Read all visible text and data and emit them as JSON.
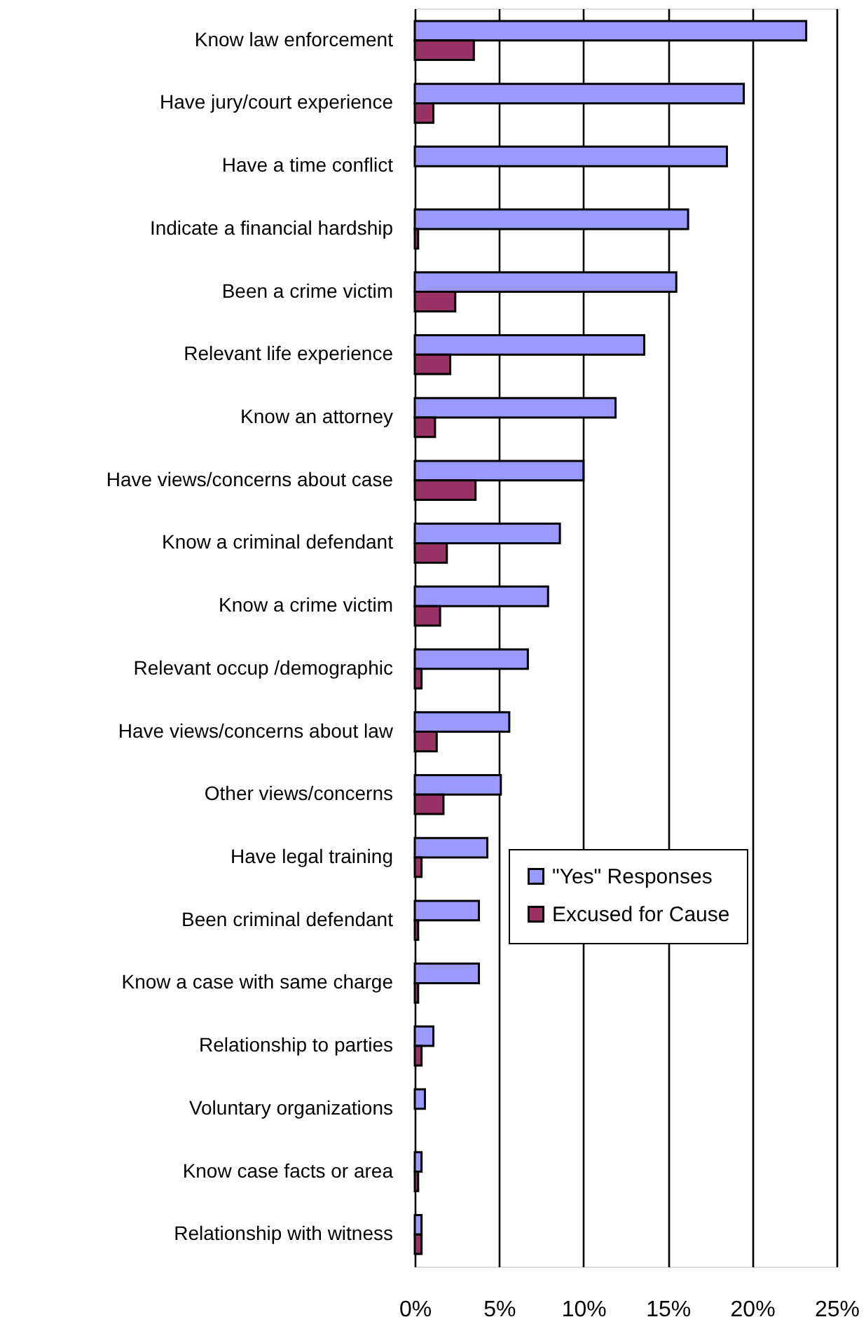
{
  "chart_data": {
    "type": "bar",
    "orientation": "horizontal",
    "categories": [
      "Know law enforcement",
      "Have jury/court experience",
      "Have a time conflict",
      "Indicate a financial hardship",
      "Been a crime victim",
      "Relevant life experience",
      "Know an attorney",
      "Have views/concerns about case",
      "Know a criminal defendant",
      "Know a crime victim",
      "Relevant occup /demographic",
      "Have views/concerns about law",
      "Other views/concerns",
      "Have legal training",
      "Been criminal defendant",
      "Know a case with same charge",
      "Relationship to parties",
      "Voluntary organizations",
      "Know case facts or area",
      "Relationship with witness"
    ],
    "series": [
      {
        "name": "\"Yes\" Responses",
        "color": "#9999ff",
        "values": [
          23.2,
          19.5,
          18.5,
          16.2,
          15.5,
          13.6,
          11.9,
          10.0,
          8.6,
          7.9,
          6.7,
          5.6,
          5.1,
          4.3,
          3.8,
          3.8,
          1.1,
          0.6,
          0.4,
          0.4
        ]
      },
      {
        "name": "Excused for Cause",
        "color": "#993366",
        "values": [
          3.5,
          1.1,
          null,
          0.2,
          2.4,
          2.1,
          1.2,
          3.6,
          1.9,
          1.5,
          0.4,
          1.3,
          1.7,
          0.4,
          0.2,
          0.2,
          0.4,
          null,
          0.2,
          0.4
        ]
      }
    ],
    "xlim": [
      0,
      25
    ],
    "xticks": [
      {
        "value": 0,
        "label": "0%"
      },
      {
        "value": 5,
        "label": "5%"
      },
      {
        "value": 10,
        "label": "10%"
      },
      {
        "value": 15,
        "label": "15%"
      },
      {
        "value": 20,
        "label": "20%"
      },
      {
        "value": 25,
        "label": "25%"
      }
    ],
    "grid": "x",
    "legend": "bottom right"
  }
}
